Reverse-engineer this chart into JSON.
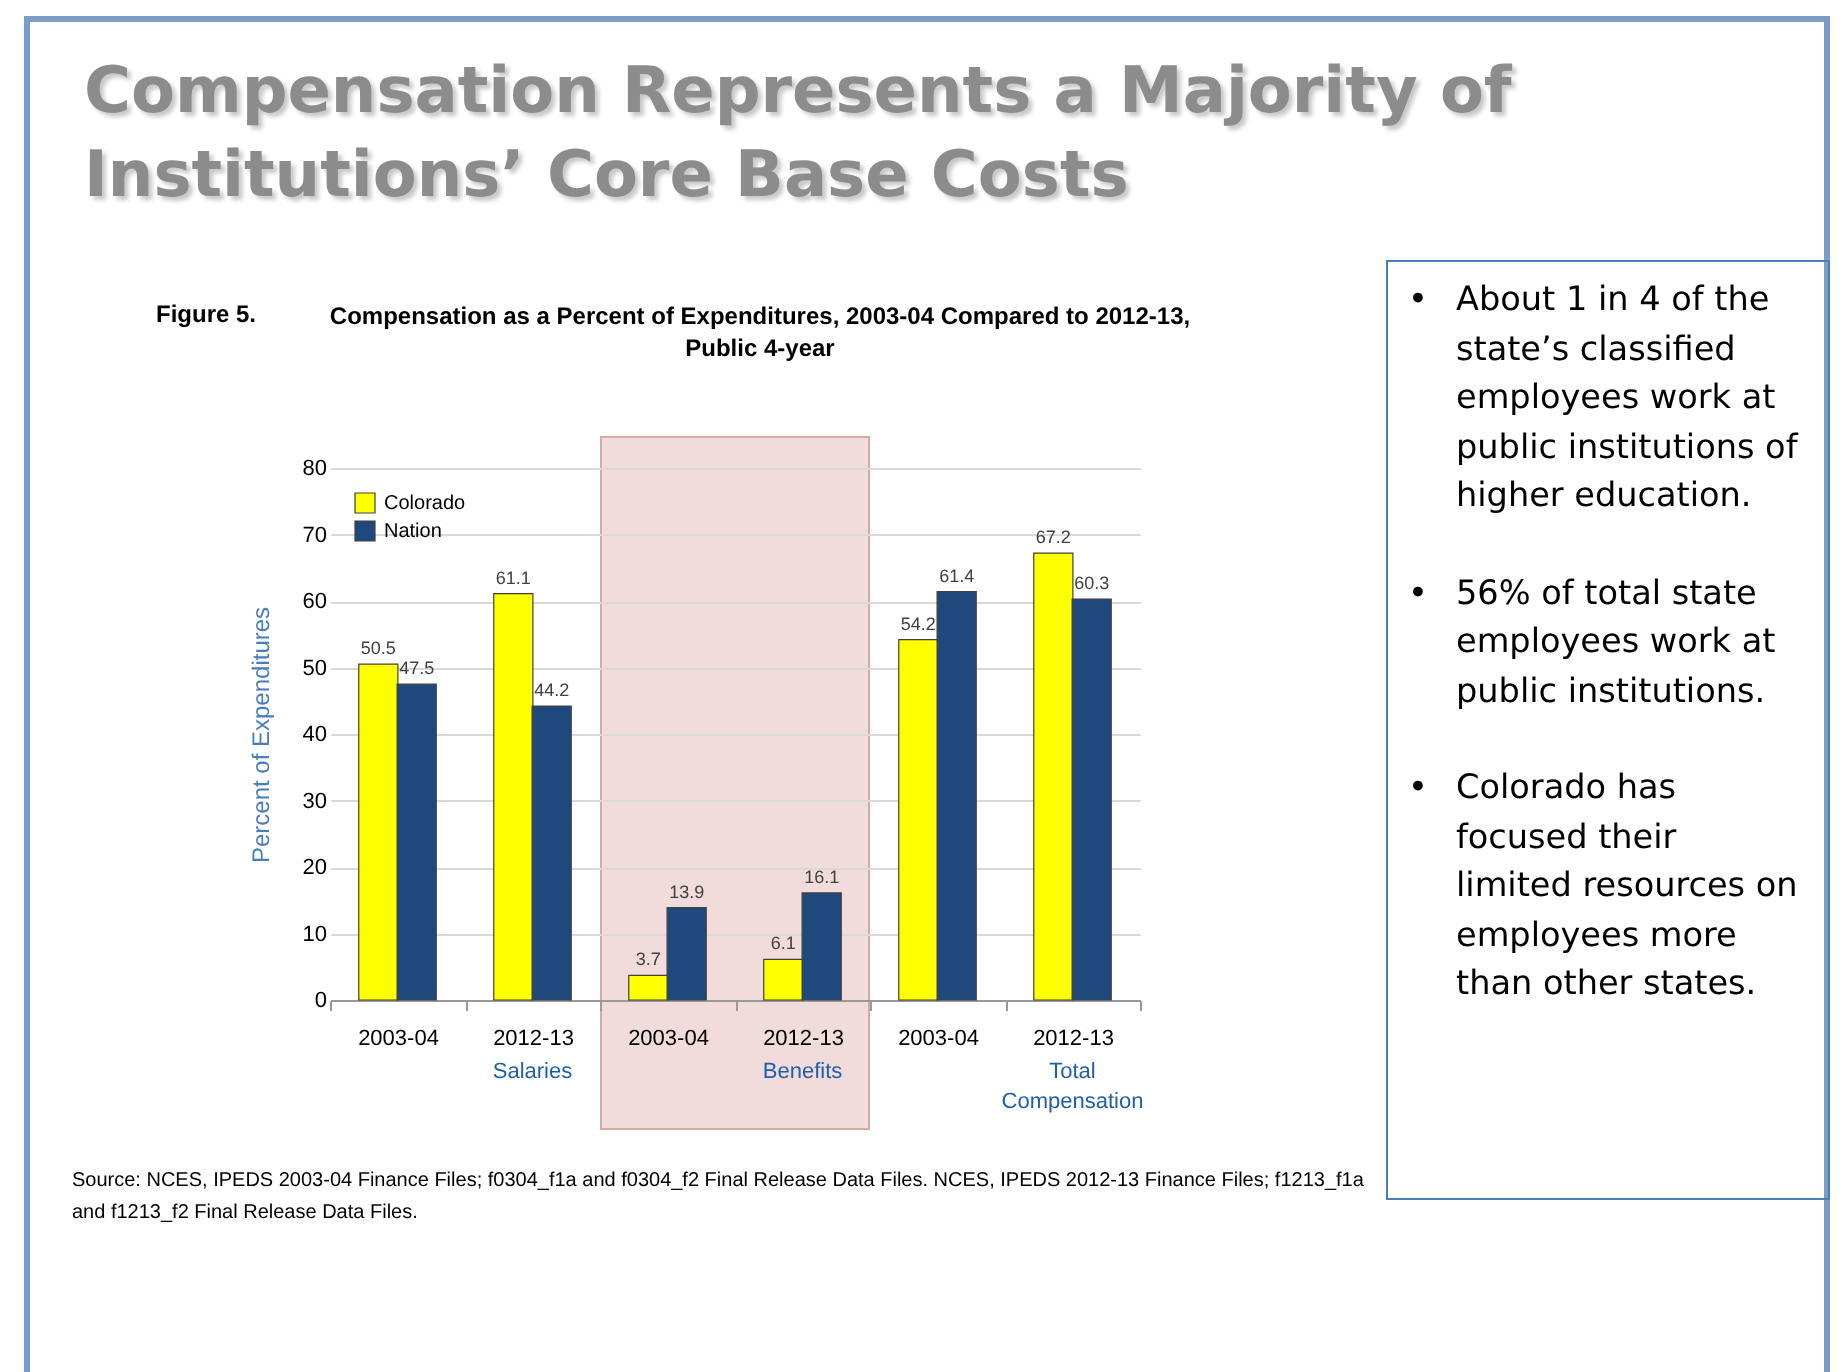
{
  "chart_data": {
    "type": "bar",
    "title": "Compensation Represents a Majority of Institutions’ Core Base Costs",
    "subtitle": "Compensation as a Percent of Expenditures, 2003-04 Compared to 2012-13, Public 4-year",
    "ylabel": "Percent of Expenditures",
    "categories": [
      "2003-04",
      "2012-13",
      "2003-04",
      "2012-13",
      "2003-04",
      "2012-13"
    ],
    "series": [
      {
        "name": "Colorado",
        "color": "#ffff00",
        "values": [
          50.5,
          61.1,
          3.7,
          6.1,
          54.2,
          67.2
        ]
      },
      {
        "name": "Nation",
        "color": "#1f497d",
        "values": [
          47.5,
          44.2,
          13.9,
          16.1,
          61.4,
          60.3
        ]
      }
    ],
    "ylim": [
      0,
      80
    ],
    "yticks": [
      0,
      10,
      20,
      30,
      40,
      50,
      60,
      70,
      80
    ],
    "grid": "y",
    "legend": "top left",
    "data_labels": true,
    "annotations": [
      "Figure 5.",
      "Salaries",
      "Benefits",
      "Total Compensation",
      "Source:  NCES, IPEDS 2003-04 Finance Files; f0304_f1a and f0304_f2 Final Release Data Files. NCES, IPEDS 2012-13 Finance Files; f1213_f1a and f1213_f2 Final Release Data Files.",
      "• About 1 in 4 of the state’s classified employees work at public institutions of higher education.",
      "• 56% of total state employees work at public institutions.",
      "• Colorado has focused their limited resources on employees more than other states."
    ]
  }
}
